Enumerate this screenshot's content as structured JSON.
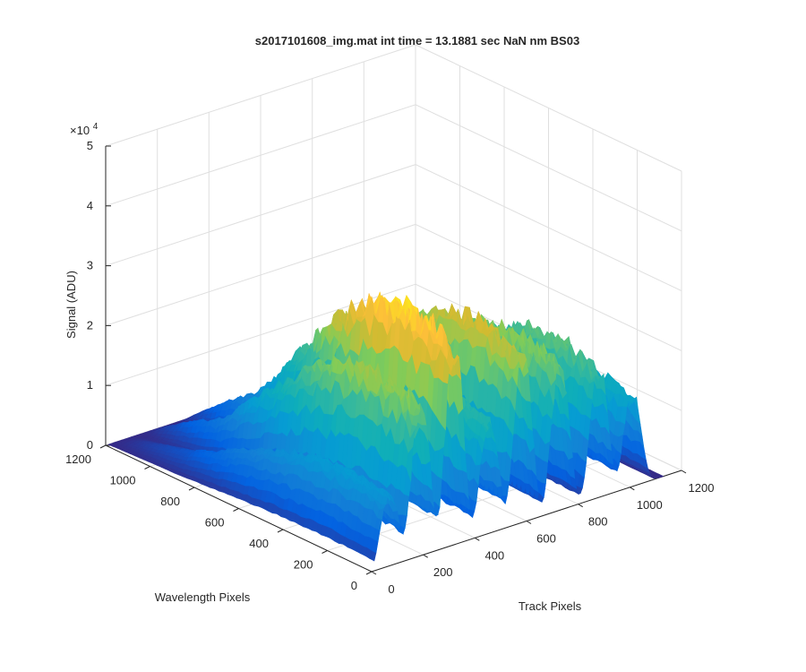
{
  "chart_data": {
    "type": "surface",
    "title": "s2017101608_img.mat int time = 13.1881 sec  NaN nm BS03",
    "xlabel": "Track Pixels",
    "ylabel": "Wavelength Pixels",
    "zlabel": "Signal (ADU)",
    "z_exponent_label": "×10",
    "z_exponent": "4",
    "xlim": [
      0,
      1200
    ],
    "ylim": [
      0,
      1200
    ],
    "zlim": [
      0,
      50000
    ],
    "x_ticks": [
      "0",
      "200",
      "400",
      "600",
      "800",
      "1000",
      "1200"
    ],
    "y_ticks": [
      "0",
      "200",
      "400",
      "600",
      "800",
      "1000",
      "1200"
    ],
    "z_ticks": [
      "0",
      "1",
      "2",
      "3",
      "4",
      "5"
    ],
    "grid": true,
    "colormap": "parula",
    "tracks": [
      {
        "track_center": 70,
        "peak_signal": 13000
      },
      {
        "track_center": 190,
        "peak_signal": 28000
      },
      {
        "track_center": 320,
        "peak_signal": 37000
      },
      {
        "track_center": 455,
        "peak_signal": 21000
      },
      {
        "track_center": 585,
        "peak_signal": 31000
      },
      {
        "track_center": 730,
        "peak_signal": 27000
      },
      {
        "track_center": 880,
        "peak_signal": 24000
      },
      {
        "track_center": 1010,
        "peak_signal": 17000
      }
    ]
  }
}
